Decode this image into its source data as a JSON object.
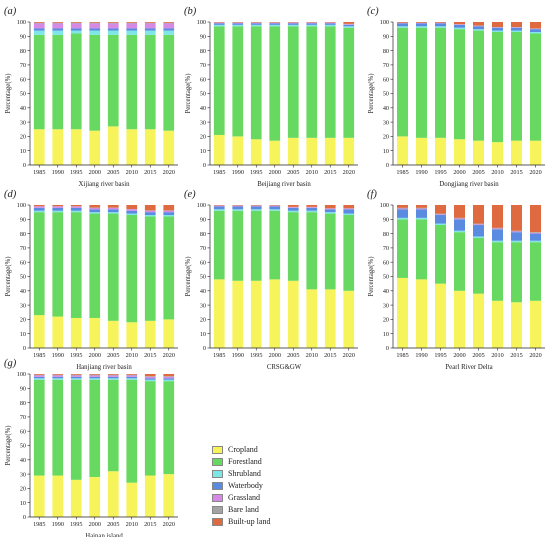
{
  "legend": [
    {
      "name": "Cropland",
      "color": "#f6f35b"
    },
    {
      "name": "Forestland",
      "color": "#67d960"
    },
    {
      "name": "Shrubland",
      "color": "#7fe6e6"
    },
    {
      "name": "Waterbody",
      "color": "#5b8be0"
    },
    {
      "name": "Grassland",
      "color": "#d68ae6"
    },
    {
      "name": "Bare land",
      "color": "#a3a3a3"
    },
    {
      "name": "Built-up land",
      "color": "#e06a40"
    }
  ],
  "chart_data": [
    {
      "type": "bar",
      "panel_label": "(a)",
      "title": "Xijiang river basin",
      "ylabel": "Percentage(%)",
      "ylim": [
        0,
        100
      ],
      "yticks": [
        "0",
        "10",
        "20",
        "30",
        "40",
        "50",
        "60",
        "70",
        "80",
        "90",
        "100"
      ],
      "categories": [
        "1985",
        "1990",
        "1995",
        "2000",
        "2005",
        "2010",
        "2015",
        "2020"
      ],
      "series": [
        {
          "name": "Cropland",
          "values": [
            25,
            25,
            25,
            24,
            27,
            25,
            25,
            24
          ]
        },
        {
          "name": "Forestland",
          "values": [
            66,
            66,
            67,
            67,
            64,
            66,
            66,
            67
          ]
        },
        {
          "name": "Shrubland",
          "values": [
            3,
            3,
            2,
            3,
            3,
            3,
            3,
            3
          ]
        },
        {
          "name": "Waterbody",
          "values": [
            1.5,
            1.5,
            1.5,
            1.5,
            1.5,
            1.5,
            1.5,
            1.5
          ]
        },
        {
          "name": "Grassland",
          "values": [
            3.5,
            3.5,
            3.5,
            3.5,
            3.5,
            3.5,
            3.5,
            3.5
          ]
        },
        {
          "name": "Bare land",
          "values": [
            0.5,
            0.5,
            0.5,
            0.5,
            0.5,
            0.5,
            0.5,
            0.5
          ]
        },
        {
          "name": "Built-up land",
          "values": [
            0.5,
            0.5,
            0.5,
            0.5,
            0.5,
            0.5,
            0.5,
            0.5
          ]
        }
      ]
    },
    {
      "type": "bar",
      "panel_label": "(b)",
      "title": "Beijiang river basin",
      "ylabel": "Percentage(%)",
      "ylim": [
        0,
        100
      ],
      "yticks": [
        "0",
        "10",
        "20",
        "30",
        "40",
        "50",
        "60",
        "70",
        "80",
        "90",
        "100"
      ],
      "categories": [
        "1985",
        "1990",
        "1995",
        "2000",
        "2005",
        "2010",
        "2015",
        "2020"
      ],
      "series": [
        {
          "name": "Cropland",
          "values": [
            21,
            20,
            18,
            17,
            19,
            19,
            19,
            19
          ]
        },
        {
          "name": "Forestland",
          "values": [
            76,
            77,
            79,
            80,
            78,
            78,
            78,
            77
          ]
        },
        {
          "name": "Shrubland",
          "values": [
            1,
            1,
            1,
            1,
            1,
            1,
            1,
            1
          ]
        },
        {
          "name": "Waterbody",
          "values": [
            1,
            1,
            1,
            1,
            1,
            1,
            1,
            1
          ]
        },
        {
          "name": "Grassland",
          "values": [
            0.5,
            0.5,
            0.5,
            0.5,
            0.5,
            0.5,
            0.5,
            0.5
          ]
        },
        {
          "name": "Bare land",
          "values": [
            0.2,
            0.2,
            0.2,
            0.2,
            0.2,
            0.2,
            0.2,
            0.2
          ]
        },
        {
          "name": "Built-up land",
          "values": [
            0.3,
            0.3,
            0.3,
            0.3,
            0.3,
            0.3,
            0.3,
            1.3
          ]
        }
      ]
    },
    {
      "type": "bar",
      "panel_label": "(c)",
      "title": "Dongjiang river basin",
      "ylabel": "Percentage(%)",
      "ylim": [
        0,
        100
      ],
      "yticks": [
        "0",
        "10",
        "20",
        "30",
        "40",
        "50",
        "60",
        "70",
        "80",
        "90",
        "100"
      ],
      "categories": [
        "1985",
        "1990",
        "1995",
        "2000",
        "2005",
        "2010",
        "2015",
        "2020"
      ],
      "series": [
        {
          "name": "Cropland",
          "values": [
            20,
            19,
            19,
            18,
            17,
            16,
            17,
            17
          ]
        },
        {
          "name": "Forestland",
          "values": [
            76,
            77,
            77,
            77,
            77,
            77,
            76,
            75
          ]
        },
        {
          "name": "Shrubland",
          "values": [
            1,
            1,
            1,
            1,
            1,
            1,
            1,
            1
          ]
        },
        {
          "name": "Waterbody",
          "values": [
            2,
            2,
            2,
            2,
            2,
            2,
            2,
            2
          ]
        },
        {
          "name": "Grassland",
          "values": [
            0.3,
            0.3,
            0.3,
            0.3,
            0.3,
            0.3,
            0.3,
            0.3
          ]
        },
        {
          "name": "Bare land",
          "values": [
            0.2,
            0.2,
            0.2,
            0.2,
            0.2,
            0.2,
            0.2,
            0.2
          ]
        },
        {
          "name": "Built-up land",
          "values": [
            0.5,
            0.5,
            0.5,
            1.5,
            2.5,
            3.5,
            3.5,
            4.5
          ]
        }
      ]
    },
    {
      "type": "bar",
      "panel_label": "(d)",
      "title": "Hanjiang river basin",
      "ylabel": "Percentage(%)",
      "ylim": [
        0,
        100
      ],
      "yticks": [
        "0",
        "10",
        "20",
        "30",
        "40",
        "50",
        "60",
        "70",
        "80",
        "90",
        "100"
      ],
      "categories": [
        "1985",
        "1990",
        "1995",
        "2000",
        "2005",
        "2010",
        "2015",
        "2020"
      ],
      "series": [
        {
          "name": "Cropland",
          "values": [
            23,
            22,
            21,
            21,
            19,
            18,
            19,
            20
          ]
        },
        {
          "name": "Forestland",
          "values": [
            72,
            73,
            74,
            73,
            75,
            75,
            73,
            72
          ]
        },
        {
          "name": "Shrubland",
          "values": [
            1,
            1,
            1,
            1,
            1,
            1,
            1,
            1
          ]
        },
        {
          "name": "Waterbody",
          "values": [
            2,
            2,
            2,
            2,
            2,
            2,
            2,
            2
          ]
        },
        {
          "name": "Grassland",
          "values": [
            1,
            1,
            1,
            1,
            1,
            1,
            1,
            1
          ]
        },
        {
          "name": "Bare land",
          "values": [
            0.2,
            0.2,
            0.2,
            0.2,
            0.2,
            0.2,
            0.2,
            0.2
          ]
        },
        {
          "name": "Built-up land",
          "values": [
            0.8,
            0.8,
            0.8,
            1.8,
            1.8,
            2.8,
            3.8,
            3.8
          ]
        }
      ]
    },
    {
      "type": "bar",
      "panel_label": "(e)",
      "title": "CRSG&GW",
      "ylabel": "Percentage(%)",
      "ylim": [
        0,
        100
      ],
      "yticks": [
        "0",
        "10",
        "20",
        "30",
        "40",
        "50",
        "60",
        "70",
        "80",
        "90",
        "100"
      ],
      "categories": [
        "1985",
        "1990",
        "1995",
        "2000",
        "2005",
        "2010",
        "2015",
        "2020"
      ],
      "series": [
        {
          "name": "Cropland",
          "values": [
            48,
            47,
            47,
            48,
            47,
            41,
            41,
            40
          ]
        },
        {
          "name": "Forestland",
          "values": [
            48,
            49,
            49,
            48,
            48,
            54,
            53,
            53
          ]
        },
        {
          "name": "Shrubland",
          "values": [
            1,
            1,
            1,
            1,
            1,
            1,
            1,
            1
          ]
        },
        {
          "name": "Waterbody",
          "values": [
            2,
            2,
            2,
            2,
            2,
            2,
            2,
            3
          ]
        },
        {
          "name": "Grassland",
          "values": [
            0.5,
            0.5,
            0.5,
            0.5,
            0.5,
            0.5,
            0.5,
            0.5
          ]
        },
        {
          "name": "Bare land",
          "values": [
            0.2,
            0.2,
            0.2,
            0.2,
            0.2,
            0.2,
            0.2,
            0.2
          ]
        },
        {
          "name": "Built-up land",
          "values": [
            0.3,
            0.3,
            0.3,
            0.3,
            1.3,
            1.3,
            2.3,
            2.3
          ]
        }
      ]
    },
    {
      "type": "bar",
      "panel_label": "(f)",
      "title": "Pearl River Delta",
      "ylabel": "Percentage(%)",
      "ylim": [
        0,
        100
      ],
      "yticks": [
        "0",
        "10",
        "20",
        "30",
        "40",
        "50",
        "60",
        "70",
        "80",
        "90",
        "100"
      ],
      "categories": [
        "1985",
        "1990",
        "1995",
        "2000",
        "2005",
        "2010",
        "2015",
        "2020"
      ],
      "series": [
        {
          "name": "Cropland",
          "values": [
            49,
            48,
            45,
            40,
            38,
            33,
            32,
            33
          ]
        },
        {
          "name": "Forestland",
          "values": [
            41,
            42,
            41,
            41,
            39,
            41,
            42,
            41
          ]
        },
        {
          "name": "Shrubland",
          "values": [
            1,
            1,
            1,
            1,
            1,
            1,
            1,
            1
          ]
        },
        {
          "name": "Waterbody",
          "values": [
            6,
            6,
            6,
            8,
            8,
            8,
            6,
            5
          ]
        },
        {
          "name": "Grassland",
          "values": [
            0.5,
            0.5,
            0.5,
            0.5,
            0.5,
            0.5,
            0.5,
            0.5
          ]
        },
        {
          "name": "Bare land",
          "values": [
            0.5,
            0.5,
            0.5,
            0.5,
            0.5,
            0.5,
            0.5,
            0.5
          ]
        },
        {
          "name": "Built-up land",
          "values": [
            2,
            2,
            6,
            9,
            13,
            16,
            18,
            19
          ]
        }
      ]
    },
    {
      "type": "bar",
      "panel_label": "(g)",
      "title": "Hainan island",
      "ylabel": "Percentage(%)",
      "ylim": [
        0,
        100
      ],
      "yticks": [
        "0",
        "10",
        "20",
        "30",
        "40",
        "50",
        "60",
        "70",
        "80",
        "90",
        "100"
      ],
      "categories": [
        "1985",
        "1990",
        "1995",
        "2000",
        "2005",
        "2010",
        "2015",
        "2020"
      ],
      "series": [
        {
          "name": "Cropland",
          "values": [
            29,
            29,
            26,
            28,
            32,
            24,
            29,
            30
          ]
        },
        {
          "name": "Forestland",
          "values": [
            67,
            67,
            70,
            68,
            64,
            72,
            66,
            65
          ]
        },
        {
          "name": "Shrubland",
          "values": [
            1,
            1,
            1,
            1,
            1,
            1,
            1,
            1
          ]
        },
        {
          "name": "Waterbody",
          "values": [
            1,
            1,
            1,
            1,
            1,
            1,
            1,
            1
          ]
        },
        {
          "name": "Grassland",
          "values": [
            1,
            1,
            1,
            1,
            1,
            1,
            1,
            1
          ]
        },
        {
          "name": "Bare land",
          "values": [
            0.5,
            0.5,
            0.5,
            0.5,
            0.5,
            0.5,
            0.5,
            0.5
          ]
        },
        {
          "name": "Built-up land",
          "values": [
            0.5,
            0.5,
            0.5,
            0.5,
            0.5,
            0.5,
            1.5,
            1.5
          ]
        }
      ]
    }
  ]
}
